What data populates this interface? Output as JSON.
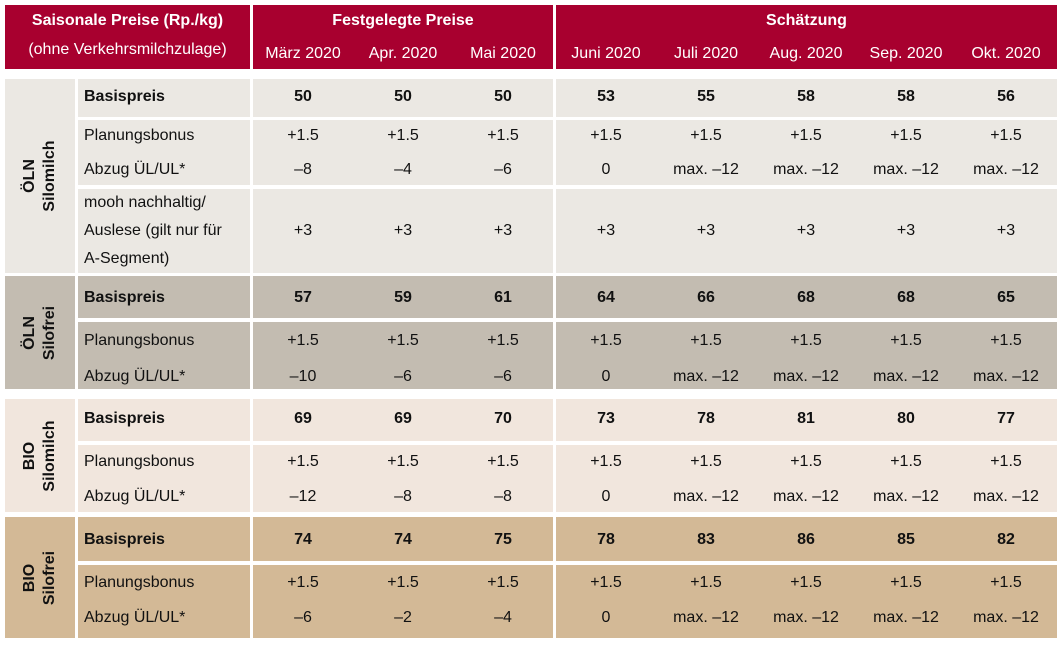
{
  "header": {
    "title_line1": "Saisonale Preise (Rp./kg)",
    "title_line2": "(ohne Verkehrsmilchzulage)",
    "group_fixed": "Festgelegte Preise",
    "group_estimate": "Schätzung",
    "months": [
      "März 2020",
      "Apr. 2020",
      "Mai 2020",
      "Juni 2020",
      "Juli 2020",
      "Aug. 2020",
      "Sep. 2020",
      "Okt. 2020"
    ]
  },
  "colors": {
    "header": "#a8002f",
    "oln_silomilch": "#ebe8e3",
    "oln_silofrei": "#c3bcb1",
    "bio_silomilch": "#f1e6dd",
    "bio_silofrei": "#d3b996"
  },
  "sections": [
    {
      "label_line1": "ÖLN",
      "label_line2": "Silomilch",
      "rows": [
        {
          "label": "Basispreis",
          "values": [
            "50",
            "50",
            "50",
            "53",
            "55",
            "58",
            "58",
            "56"
          ]
        },
        {
          "label": "Planungsbonus",
          "values": [
            "+1.5",
            "+1.5",
            "+1.5",
            "+1.5",
            "+1.5",
            "+1.5",
            "+1.5",
            "+1.5"
          ]
        },
        {
          "label": "Abzug ÜL/UL*",
          "values": [
            "–8",
            "–4",
            "–6",
            "0",
            "max. –12",
            "max. –12",
            "max. –12",
            "max. –12"
          ]
        },
        {
          "label_lines": [
            "mooh nachhaltig/",
            "Auslese (gilt nur für",
            "A-Segment)"
          ],
          "values": [
            "+3",
            "+3",
            "+3",
            "+3",
            "+3",
            "+3",
            "+3",
            "+3"
          ]
        }
      ]
    },
    {
      "label_line1": "ÖLN",
      "label_line2": "Silofrei",
      "rows": [
        {
          "label": "Basispreis",
          "values": [
            "57",
            "59",
            "61",
            "64",
            "66",
            "68",
            "68",
            "65"
          ]
        },
        {
          "label": "Planungsbonus",
          "values": [
            "+1.5",
            "+1.5",
            "+1.5",
            "+1.5",
            "+1.5",
            "+1.5",
            "+1.5",
            "+1.5"
          ]
        },
        {
          "label": "Abzug ÜL/UL*",
          "values": [
            "–10",
            "–6",
            "–6",
            "0",
            "max. –12",
            "max. –12",
            "max. –12",
            "max. –12"
          ]
        }
      ]
    },
    {
      "label_line1": "BIO",
      "label_line2": "Silomilch",
      "rows": [
        {
          "label": "Basispreis",
          "values": [
            "69",
            "69",
            "70",
            "73",
            "78",
            "81",
            "80",
            "77"
          ]
        },
        {
          "label": "Planungsbonus",
          "values": [
            "+1.5",
            "+1.5",
            "+1.5",
            "+1.5",
            "+1.5",
            "+1.5",
            "+1.5",
            "+1.5"
          ]
        },
        {
          "label": "Abzug ÜL/UL*",
          "values": [
            "–12",
            "–8",
            "–8",
            "0",
            "max. –12",
            "max. –12",
            "max. –12",
            "max. –12"
          ]
        }
      ]
    },
    {
      "label_line1": "BIO",
      "label_line2": "Silofrei",
      "rows": [
        {
          "label": "Basispreis",
          "values": [
            "74",
            "74",
            "75",
            "78",
            "83",
            "86",
            "85",
            "82"
          ]
        },
        {
          "label": "Planungsbonus",
          "values": [
            "+1.5",
            "+1.5",
            "+1.5",
            "+1.5",
            "+1.5",
            "+1.5",
            "+1.5",
            "+1.5"
          ]
        },
        {
          "label": "Abzug ÜL/UL*",
          "values": [
            "–6",
            "–2",
            "–4",
            "0",
            "max. –12",
            "max. –12",
            "max. –12",
            "max. –12"
          ]
        }
      ]
    }
  ]
}
